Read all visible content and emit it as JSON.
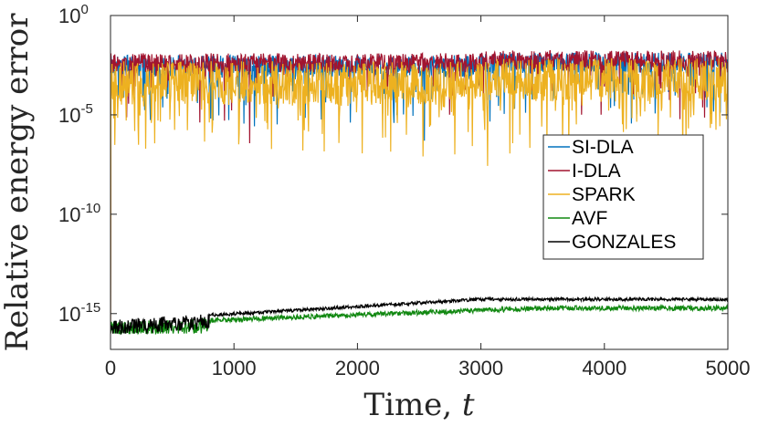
{
  "chart_data": {
    "type": "line",
    "xlabel": "Time, ",
    "xlabel_var": "t",
    "ylabel": "Relative energy error",
    "xlim": [
      0,
      5000
    ],
    "ylim_log10": [
      -16.8,
      0
    ],
    "y_scale": "log",
    "xticks": [
      0,
      1000,
      2000,
      3000,
      4000,
      5000
    ],
    "xtick_labels": [
      "0",
      "1000",
      "2000",
      "3000",
      "4000",
      "5000"
    ],
    "yticks_log10": [
      0,
      -5,
      -10,
      -15
    ],
    "ytick_labels": [
      {
        "base": "10",
        "exp": "0"
      },
      {
        "base": "10",
        "exp": "-5"
      },
      {
        "base": "10",
        "exp": "-10"
      },
      {
        "base": "10",
        "exp": "-15"
      }
    ],
    "grid": false,
    "legend_position": "right",
    "series": [
      {
        "name": "SI-DLA",
        "color": "#0072BD",
        "level_log10": -2.0,
        "spread": 1.1
      },
      {
        "name": "I-DLA",
        "color": "#A2142F",
        "level_log10": -1.9,
        "spread": 1.0
      },
      {
        "name": "SPARK",
        "color": "#EDB120",
        "level_log10": -2.3,
        "spread": 2.2
      },
      {
        "name": "AVF",
        "color": "#118811",
        "level_log10": -14.6,
        "spread": 0.5
      },
      {
        "name": "GONZALES",
        "color": "#000000",
        "level_log10": -14.2,
        "spread": 0.4
      }
    ]
  }
}
